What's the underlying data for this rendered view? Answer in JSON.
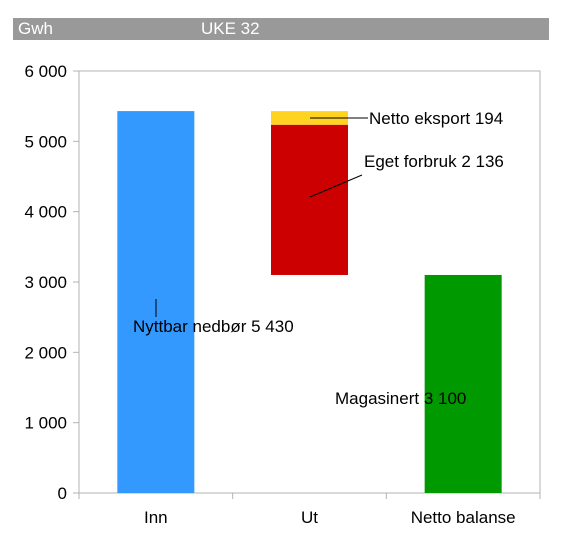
{
  "header": {
    "unit": "Gwh",
    "title": "UKE 32"
  },
  "chart_data": {
    "type": "bar",
    "stacked": true,
    "categories": [
      "Inn",
      "Ut",
      "Netto balanse"
    ],
    "ylim": [
      0,
      6000
    ],
    "yticks": [
      0,
      1000,
      2000,
      3000,
      4000,
      5000,
      6000
    ],
    "ytick_labels": [
      "0",
      "1 000",
      "2 000",
      "3 000",
      "4 000",
      "5 000",
      "6 000"
    ],
    "grid": false,
    "segments": [
      {
        "category": "Inn",
        "base": 0,
        "value": 5430,
        "color": "#3399ff",
        "label": "Nyttbar nedbør 5 430"
      },
      {
        "category": "Ut",
        "base": 3100,
        "value": 2136,
        "color": "#cc0000",
        "label": "Eget forbruk 2 136"
      },
      {
        "category": "Ut",
        "base": 5236,
        "value": 194,
        "color": "#ffd320",
        "label": "Netto eksport 194"
      },
      {
        "category": "Netto balanse",
        "base": 0,
        "value": 3100,
        "color": "#009900",
        "label": "Magasinert 3 100"
      }
    ]
  }
}
